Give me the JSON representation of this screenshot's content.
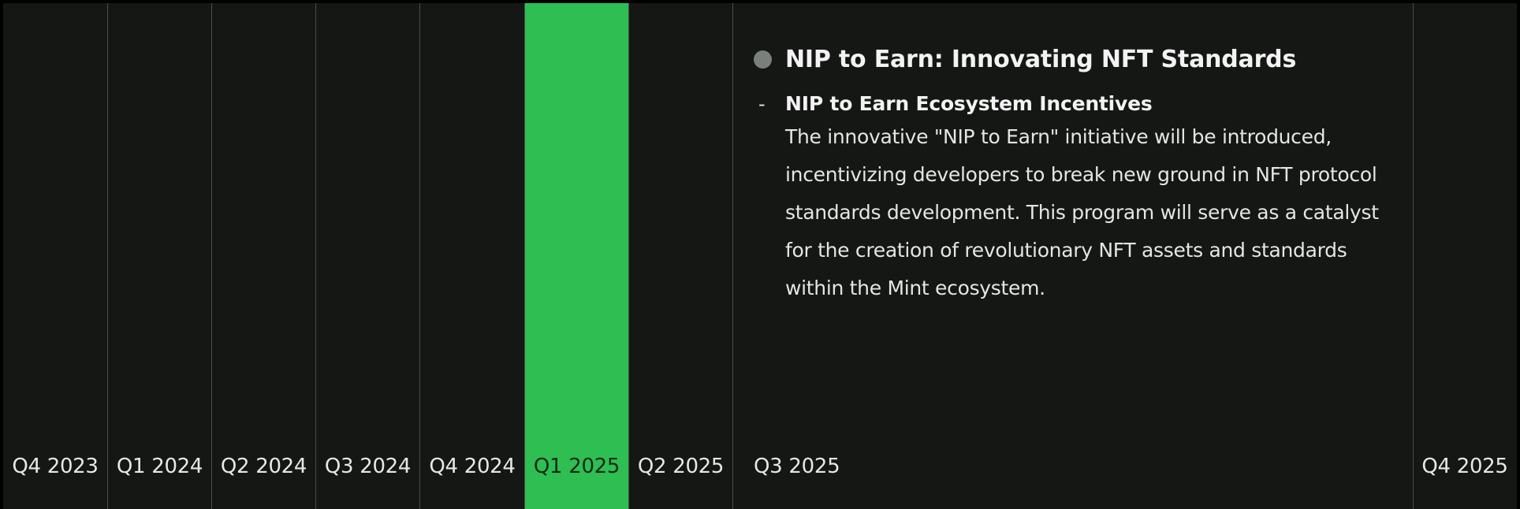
{
  "timeline": {
    "quarters": [
      "Q4 2023",
      "Q1 2024",
      "Q2 2024",
      "Q3 2024",
      "Q4 2024",
      "Q1 2025",
      "Q2 2025",
      "Q3 2025",
      "Q4 2025"
    ],
    "active_quarter": "Q1 2025",
    "accent_color": "#2fbe52"
  },
  "milestone": {
    "title": "NIP to Earn: Innovating NFT Standards",
    "items": [
      {
        "heading": "NIP to Earn Ecosystem Incentives",
        "text": "The innovative \"NIP to Earn\" initiative will be introduced, incentivizing developers to break new ground in NFT protocol standards development. This program will serve as a catalyst for the creation of revolutionary NFT assets and standards within the Mint ecosystem."
      }
    ],
    "bullet_symbol": "-"
  }
}
